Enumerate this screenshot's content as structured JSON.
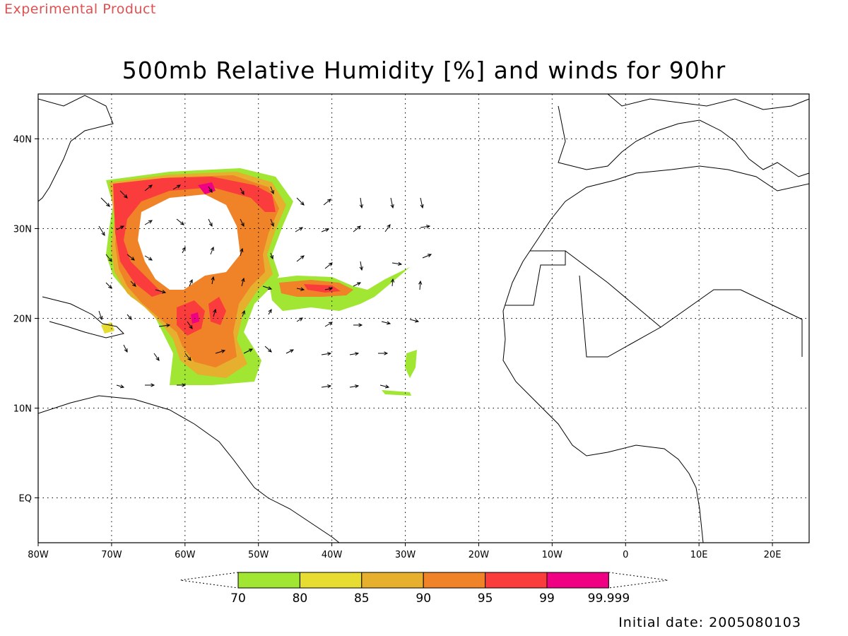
{
  "header": {
    "experimental_label": "Experimental Product",
    "title": "500mb Relative Humidity [%] and winds for 90hr"
  },
  "map": {
    "lon_labels": [
      "80W",
      "70W",
      "60W",
      "50W",
      "40W",
      "30W",
      "20W",
      "10W",
      "0",
      "10E",
      "20E"
    ],
    "lat_labels": [
      "40N",
      "30N",
      "20N",
      "10N",
      "EQ"
    ],
    "grid": "dotted"
  },
  "colorbar": {
    "bins": [
      {
        "label": "70",
        "color": "#a0e632"
      },
      {
        "label": "80",
        "color": "#e6dc32"
      },
      {
        "label": "85",
        "color": "#e6af2d"
      },
      {
        "label": "90",
        "color": "#f08228"
      },
      {
        "label": "95",
        "color": "#fa3c3c"
      },
      {
        "label": "99",
        "color": "#f00082"
      }
    ],
    "last_label": "99.999"
  },
  "footer": {
    "initial_date": "Initial date: 2005080103"
  }
}
